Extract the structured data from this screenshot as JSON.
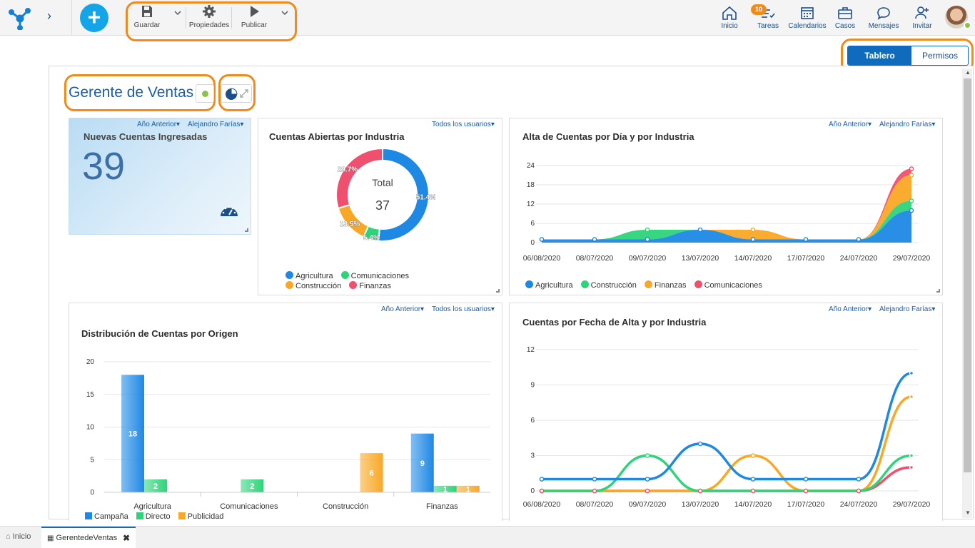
{
  "toolbar": {
    "save_label": "Guardar",
    "properties_label": "Propiedades",
    "publish_label": "Publicar"
  },
  "nav": {
    "home_label": "Inicio",
    "tasks_label": "Tareas",
    "tasks_badge": "10",
    "calendars_label": "Calendarios",
    "cases_label": "Casos",
    "messages_label": "Mensajes",
    "invite_label": "Invitar"
  },
  "view_toggle": {
    "dashboard_label": "Tablero",
    "permissions_label": "Permisos"
  },
  "page": {
    "title": "Gerente de Ventas"
  },
  "widgets": {
    "kpi": {
      "filter_period": "Año Anterior",
      "filter_user": "Alejandro Farías",
      "title": "Nuevas Cuentas Ingresadas",
      "value": "39"
    },
    "donut": {
      "filter_user": "Todos los usuarios",
      "title": "Cuentas Abiertas por Industria",
      "center_label": "Total",
      "center_value": "37",
      "legend": [
        "Agricultura",
        "Comunicaciones",
        "Construcción",
        "Finanzas"
      ]
    },
    "area": {
      "filter_period": "Año Anterior",
      "filter_user": "Alejandro Farías",
      "title": "Alta de Cuentas por Día y por Industria",
      "legend": [
        "Agricultura",
        "Construcción",
        "Finanzas",
        "Comunicaciones"
      ]
    },
    "bar": {
      "filter_period": "Año Anterior",
      "filter_user": "Todos los usuarios",
      "title": "Distribución de Cuentas por Origen",
      "legend": [
        "Campaña",
        "Directo",
        "Publicidad"
      ]
    },
    "line": {
      "filter_period": "Año Anterior",
      "filter_user": "Alejandro Farías",
      "title": "Cuentas por Fecha de Alta y por Industria"
    }
  },
  "tabs": {
    "home_label": "Inicio",
    "active_label": "GerentedeVentas"
  },
  "colors": {
    "blue": "#1e88e5",
    "green": "#2ed47a",
    "orange": "#f9a825",
    "red": "#f0506e",
    "highlight": "#ef8a1d",
    "primary": "#0f6cbd"
  },
  "chart_data": [
    {
      "type": "pie",
      "title": "Cuentas Abiertas por Industria",
      "categories": [
        "Agricultura",
        "Comunicaciones",
        "Construcción",
        "Finanzas"
      ],
      "values": [
        51.4,
        5.4,
        13.5,
        29.7
      ],
      "labels": [
        "51.4%",
        "5.4%",
        "13.5%",
        "29.7%"
      ],
      "total": 37
    },
    {
      "type": "area",
      "title": "Alta de Cuentas por Día y por Industria",
      "x": [
        "06/08/2020",
        "08/07/2020",
        "09/07/2020",
        "13/07/2020",
        "14/07/2020",
        "17/07/2020",
        "24/07/2020",
        "29/07/2020"
      ],
      "ylim": [
        0,
        24
      ],
      "yticks": [
        0,
        6,
        12,
        18,
        24
      ],
      "stacked": true,
      "series": [
        {
          "name": "Agricultura",
          "values": [
            1,
            1,
            1,
            4,
            1,
            1,
            1,
            10
          ]
        },
        {
          "name": "Construcción",
          "values": [
            0,
            0,
            3,
            0,
            0,
            0,
            0,
            3
          ]
        },
        {
          "name": "Finanzas",
          "values": [
            0,
            0,
            0,
            0,
            3,
            0,
            0,
            8
          ]
        },
        {
          "name": "Comunicaciones",
          "values": [
            0,
            0,
            0,
            0,
            0,
            0,
            0,
            2
          ]
        }
      ]
    },
    {
      "type": "bar",
      "title": "Distribución de Cuentas por Origen",
      "categories": [
        "Agricultura",
        "Comunicaciones",
        "Construcción",
        "Finanzas"
      ],
      "ylim": [
        0,
        20
      ],
      "yticks": [
        0,
        5,
        10,
        15,
        20
      ],
      "series": [
        {
          "name": "Campaña",
          "values": [
            18,
            0,
            0,
            9
          ]
        },
        {
          "name": "Directo",
          "values": [
            2,
            2,
            0,
            1
          ]
        },
        {
          "name": "Publicidad",
          "values": [
            0,
            0,
            6,
            1
          ]
        }
      ]
    },
    {
      "type": "line",
      "title": "Cuentas por Fecha de Alta y por Industria",
      "x": [
        "06/08/2020",
        "08/07/2020",
        "09/07/2020",
        "13/07/2020",
        "14/07/2020",
        "17/07/2020",
        "24/07/2020",
        "29/07/2020"
      ],
      "ylim": [
        0,
        12
      ],
      "yticks": [
        0,
        3,
        6,
        9,
        12
      ],
      "series": [
        {
          "name": "Agricultura",
          "values": [
            1,
            1,
            1,
            4,
            1,
            1,
            1,
            10
          ]
        },
        {
          "name": "Construcción",
          "values": [
            0,
            0,
            3,
            0,
            0,
            0,
            0,
            3
          ]
        },
        {
          "name": "Finanzas",
          "values": [
            0,
            0,
            0,
            0,
            3,
            0,
            0,
            8
          ]
        },
        {
          "name": "Comunicaciones",
          "values": [
            0,
            0,
            0,
            0,
            0,
            0,
            0,
            2
          ]
        }
      ]
    }
  ]
}
